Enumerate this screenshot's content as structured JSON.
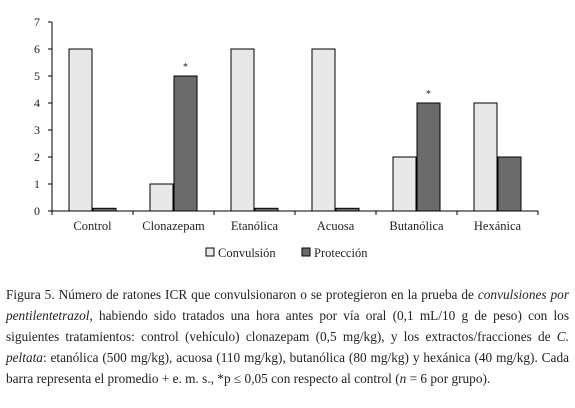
{
  "chart_data": {
    "type": "bar",
    "categories": [
      "Control",
      "Clonazepam",
      "Etanólica",
      "Acuosa",
      "Butanólica",
      "Hexánica"
    ],
    "series": [
      {
        "name": "Convulsión",
        "values": [
          6,
          1,
          6,
          6,
          2,
          4
        ],
        "color": "#e8e8e8"
      },
      {
        "name": "Protección",
        "values": [
          0.1,
          5,
          0.1,
          0.1,
          4,
          2
        ],
        "color": "#6b6b6b"
      }
    ],
    "ylim": [
      0,
      7
    ],
    "yticks": [
      "0",
      "1",
      "2",
      "3",
      "4",
      "5",
      "6",
      "7"
    ],
    "grid": false,
    "legend_position": "bottom",
    "significance_marker": "*",
    "significant": [
      {
        "category": "Clonazepam",
        "series": "Protección"
      },
      {
        "category": "Butanólica",
        "series": "Protección"
      }
    ]
  },
  "caption": {
    "part1": "Figura 5. Número de ratones ICR que convulsionaron o se protegieron en la prueba de ",
    "italic1": "convulsiones por pentilentetrazol",
    "part2": ", habiendo sido tratados una hora antes por vía oral (0,1 mL/10 g de peso) con los siguientes tratamientos: control (vehículo) clonazepam (0,5 mg/kg), y los extractos/fracciones de ",
    "italic2": "C. peltata",
    "part3": ": etanólica (500 mg/kg), acuosa (110 mg/kg), butanólica (80 mg/kg) y hexánica (40 mg/kg). Cada barra representa el promedio + e. m. s., *p ≤ 0,05 con respecto al control (",
    "italic3": "n",
    "part4": " = 6 por grupo)."
  }
}
